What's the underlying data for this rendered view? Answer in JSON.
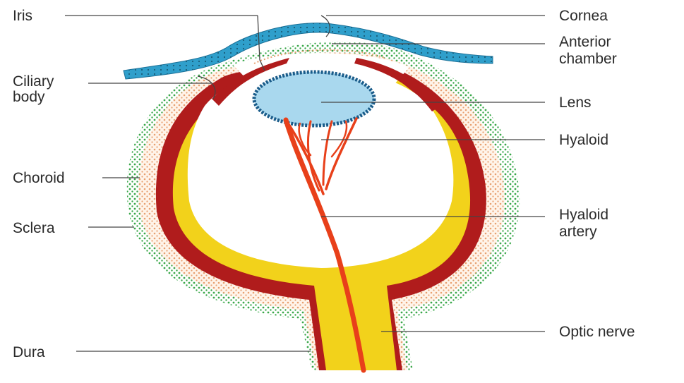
{
  "labels": {
    "iris": "Iris",
    "ciliary_body_1": "Ciliary",
    "ciliary_body_2": "body",
    "choroid": "Choroid",
    "sclera": "Sclera",
    "dura": "Dura",
    "cornea": "Cornea",
    "anterior_chamber_1": "Anterior",
    "anterior_chamber_2": "chamber",
    "lens": "Lens",
    "hyaloid": "Hyaloid",
    "hyaloid_artery_1": "Hyaloid",
    "hyaloid_artery_2": "artery",
    "optic_nerve": "Optic nerve"
  },
  "colors": {
    "cornea": "#2f9fcb",
    "dura_dots": "#3aa84a",
    "sclera_dots": "#e8a070",
    "choroid": "#b01c1c",
    "retina": "#f2d21b",
    "lens": "#a9d8ee",
    "hyaloid": "#e8401a"
  }
}
